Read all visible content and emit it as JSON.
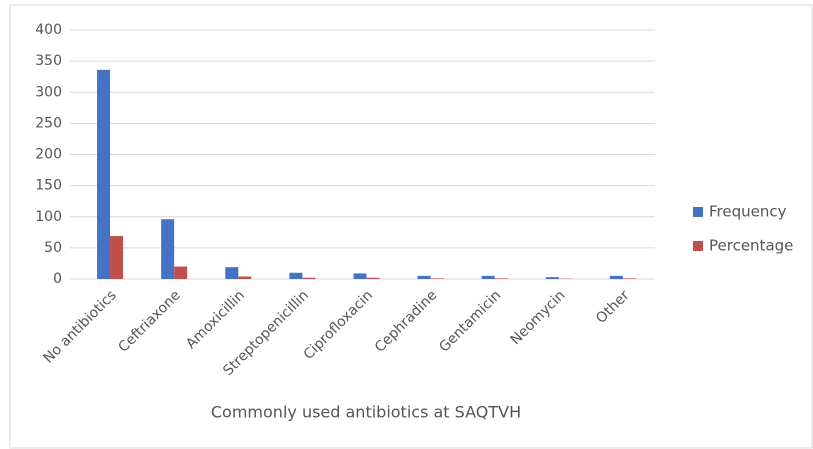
{
  "chart_data": {
    "type": "bar",
    "x_label": "Commonly used antibiotics at SAQTVH",
    "categories": [
      "No antibiotics",
      "Ceftriaxone",
      "Amoxicillin",
      "Streptopenicillin",
      "Ciprofloxacin",
      "Cephradine",
      "Gentamicin",
      "Neomycin",
      "Other"
    ],
    "series": [
      {
        "name": "Frequency",
        "color": "#4472c4",
        "values": [
          336,
          96,
          19,
          10,
          9,
          5,
          5,
          3,
          5
        ]
      },
      {
        "name": "Percentage",
        "color": "#c0504d",
        "values": [
          69,
          20,
          4,
          2,
          2,
          1,
          1,
          0.6,
          1
        ]
      }
    ],
    "ylim": [
      0,
      400
    ],
    "yticks": [
      0,
      50,
      100,
      150,
      200,
      250,
      300,
      350,
      400
    ],
    "grid": true,
    "legend": "right"
  }
}
